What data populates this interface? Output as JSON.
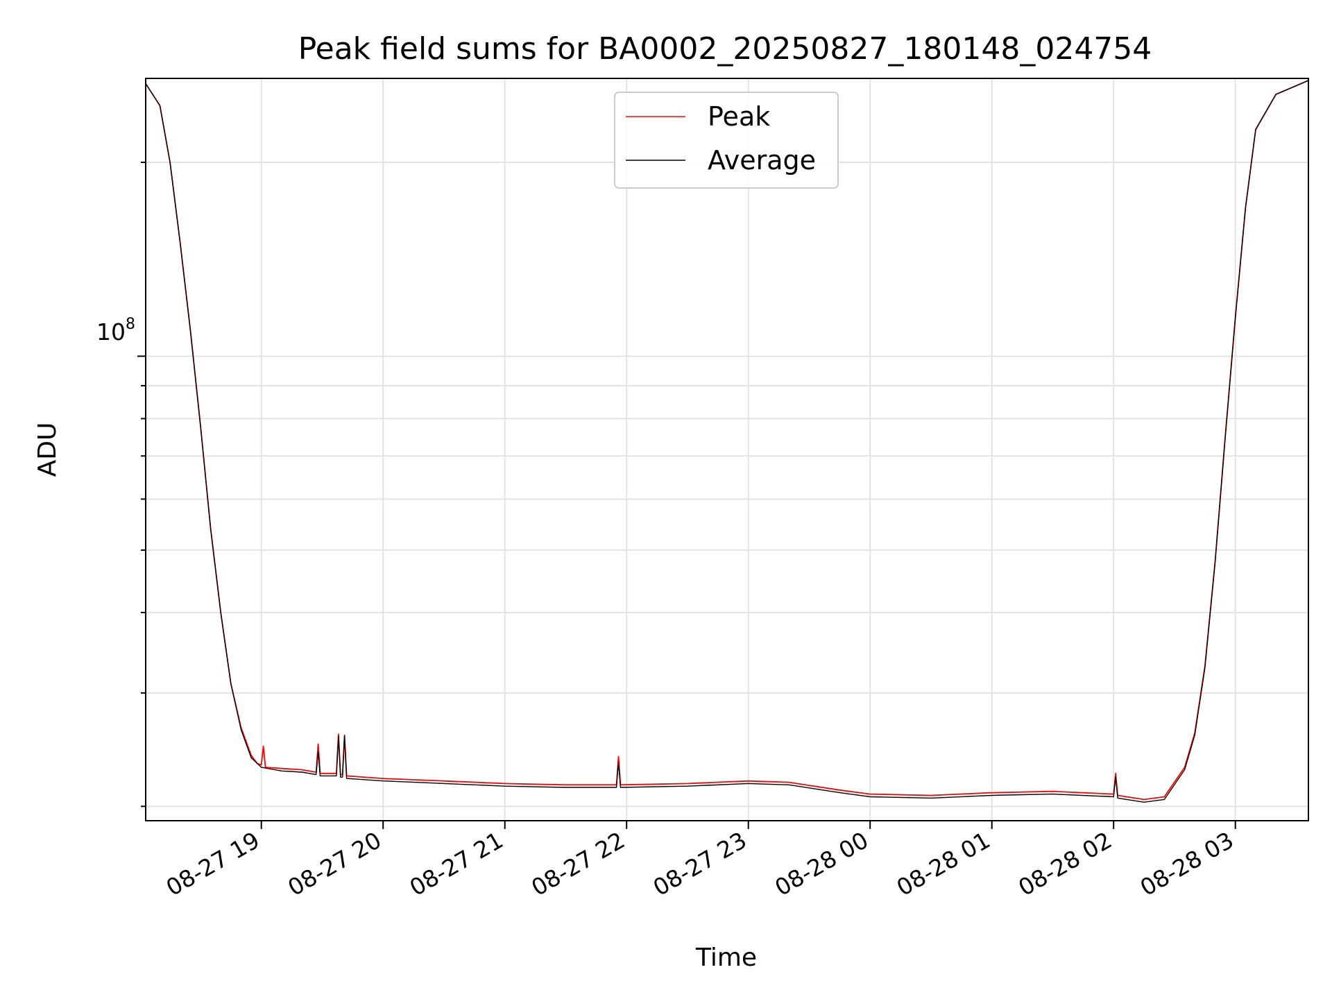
{
  "chart_data": {
    "type": "line",
    "title": "Peak field sums for BA0002_20250827_180148_024754",
    "xlabel": "Time",
    "ylabel": "ADU",
    "yscale": "log",
    "x_range": [
      "2025-08-27 18:03",
      "2025-08-28 03:36"
    ],
    "y_range": [
      19000000,
      270000000
    ],
    "x_ticks": [
      "08-27 19",
      "08-27 20",
      "08-27 21",
      "08-27 22",
      "08-27 23",
      "08-28 00",
      "08-28 01",
      "08-28 02",
      "08-28 03"
    ],
    "y_ticks": [
      {
        "value": 100000000,
        "label": "10^8"
      }
    ],
    "y_tick_label": {
      "base": "10",
      "exponent": "8"
    },
    "grid": true,
    "legend": {
      "position": "top-center",
      "entries": [
        "Peak",
        "Average"
      ]
    },
    "series": [
      {
        "name": "Peak",
        "color": "#ff0000",
        "points": [
          [
            "2025-08-27 18:03",
            265000000
          ],
          [
            "2025-08-27 18:10",
            245000000
          ],
          [
            "2025-08-27 18:15",
            200000000
          ],
          [
            "2025-08-27 18:20",
            150000000
          ],
          [
            "2025-08-27 18:25",
            110000000
          ],
          [
            "2025-08-27 18:30",
            78000000
          ],
          [
            "2025-08-27 18:35",
            54000000
          ],
          [
            "2025-08-27 18:40",
            40000000
          ],
          [
            "2025-08-27 18:45",
            31000000
          ],
          [
            "2025-08-27 18:50",
            26500000
          ],
          [
            "2025-08-27 18:55",
            24000000
          ],
          [
            "2025-08-27 18:58",
            23300000
          ],
          [
            "2025-08-27 19:00",
            23200000
          ],
          [
            "2025-08-27 19:01",
            24800000
          ],
          [
            "2025-08-27 19:02",
            23000000
          ],
          [
            "2025-08-27 19:10",
            22900000
          ],
          [
            "2025-08-27 19:20",
            22800000
          ],
          [
            "2025-08-27 19:27",
            22600000
          ],
          [
            "2025-08-27 19:28",
            25000000
          ],
          [
            "2025-08-27 19:29",
            22500000
          ],
          [
            "2025-08-27 19:37",
            22500000
          ],
          [
            "2025-08-27 19:38",
            25900000
          ],
          [
            "2025-08-27 19:39",
            22400000
          ],
          [
            "2025-08-27 19:40",
            22400000
          ],
          [
            "2025-08-27 19:41",
            25800000
          ],
          [
            "2025-08-27 19:42",
            22300000
          ],
          [
            "2025-08-27 20:00",
            22100000
          ],
          [
            "2025-08-27 20:30",
            21900000
          ],
          [
            "2025-08-27 21:00",
            21700000
          ],
          [
            "2025-08-27 21:30",
            21600000
          ],
          [
            "2025-08-27 21:55",
            21600000
          ],
          [
            "2025-08-27 21:56",
            23900000
          ],
          [
            "2025-08-27 21:57",
            21600000
          ],
          [
            "2025-08-27 22:30",
            21700000
          ],
          [
            "2025-08-27 23:00",
            21900000
          ],
          [
            "2025-08-27 23:20",
            21800000
          ],
          [
            "2025-08-27 23:45",
            21200000
          ],
          [
            "2025-08-28 00:00",
            20900000
          ],
          [
            "2025-08-28 00:30",
            20800000
          ],
          [
            "2025-08-28 01:00",
            21000000
          ],
          [
            "2025-08-28 01:30",
            21100000
          ],
          [
            "2025-08-28 02:00",
            20900000
          ],
          [
            "2025-08-28 02:01",
            22500000
          ],
          [
            "2025-08-28 02:02",
            20800000
          ],
          [
            "2025-08-28 02:15",
            20500000
          ],
          [
            "2025-08-28 02:25",
            20700000
          ],
          [
            "2025-08-28 02:35",
            23000000
          ],
          [
            "2025-08-28 02:40",
            26000000
          ],
          [
            "2025-08-28 02:45",
            33000000
          ],
          [
            "2025-08-28 02:50",
            48000000
          ],
          [
            "2025-08-28 02:55",
            75000000
          ],
          [
            "2025-08-28 03:00",
            115000000
          ],
          [
            "2025-08-28 03:05",
            170000000
          ],
          [
            "2025-08-28 03:10",
            225000000
          ],
          [
            "2025-08-28 03:20",
            255000000
          ],
          [
            "2025-08-28 03:36",
            268000000
          ]
        ]
      },
      {
        "name": "Average",
        "color": "#000000",
        "points": [
          [
            "2025-08-27 18:03",
            265000000
          ],
          [
            "2025-08-27 18:10",
            245000000
          ],
          [
            "2025-08-27 18:15",
            200000000
          ],
          [
            "2025-08-27 18:20",
            150000000
          ],
          [
            "2025-08-27 18:25",
            110000000
          ],
          [
            "2025-08-27 18:30",
            78000000
          ],
          [
            "2025-08-27 18:35",
            54000000
          ],
          [
            "2025-08-27 18:40",
            40000000
          ],
          [
            "2025-08-27 18:45",
            31000000
          ],
          [
            "2025-08-27 18:50",
            26300000
          ],
          [
            "2025-08-27 18:55",
            23800000
          ],
          [
            "2025-08-27 19:00",
            23000000
          ],
          [
            "2025-08-27 19:10",
            22700000
          ],
          [
            "2025-08-27 19:20",
            22600000
          ],
          [
            "2025-08-27 19:27",
            22400000
          ],
          [
            "2025-08-27 19:28",
            24300000
          ],
          [
            "2025-08-27 19:29",
            22300000
          ],
          [
            "2025-08-27 19:37",
            22300000
          ],
          [
            "2025-08-27 19:38",
            25700000
          ],
          [
            "2025-08-27 19:39",
            22200000
          ],
          [
            "2025-08-27 19:40",
            22200000
          ],
          [
            "2025-08-27 19:41",
            25700000
          ],
          [
            "2025-08-27 19:42",
            22100000
          ],
          [
            "2025-08-27 20:00",
            21900000
          ],
          [
            "2025-08-27 20:30",
            21700000
          ],
          [
            "2025-08-27 21:00",
            21500000
          ],
          [
            "2025-08-27 21:30",
            21400000
          ],
          [
            "2025-08-27 21:55",
            21400000
          ],
          [
            "2025-08-27 21:56",
            23400000
          ],
          [
            "2025-08-27 21:57",
            21400000
          ],
          [
            "2025-08-27 22:30",
            21500000
          ],
          [
            "2025-08-27 23:00",
            21700000
          ],
          [
            "2025-08-27 23:20",
            21600000
          ],
          [
            "2025-08-27 23:45",
            21000000
          ],
          [
            "2025-08-28 00:00",
            20700000
          ],
          [
            "2025-08-28 00:30",
            20600000
          ],
          [
            "2025-08-28 01:00",
            20800000
          ],
          [
            "2025-08-28 01:30",
            20900000
          ],
          [
            "2025-08-28 02:00",
            20700000
          ],
          [
            "2025-08-28 02:01",
            22200000
          ],
          [
            "2025-08-28 02:02",
            20600000
          ],
          [
            "2025-08-28 02:15",
            20300000
          ],
          [
            "2025-08-28 02:25",
            20500000
          ],
          [
            "2025-08-28 02:35",
            22800000
          ],
          [
            "2025-08-28 02:40",
            25800000
          ],
          [
            "2025-08-28 02:45",
            32800000
          ],
          [
            "2025-08-28 02:50",
            47800000
          ],
          [
            "2025-08-28 02:55",
            74800000
          ],
          [
            "2025-08-28 03:00",
            114800000
          ],
          [
            "2025-08-28 03:05",
            169800000
          ],
          [
            "2025-08-28 03:10",
            224800000
          ],
          [
            "2025-08-28 03:20",
            255000000
          ],
          [
            "2025-08-28 03:36",
            268000000
          ]
        ]
      }
    ]
  }
}
